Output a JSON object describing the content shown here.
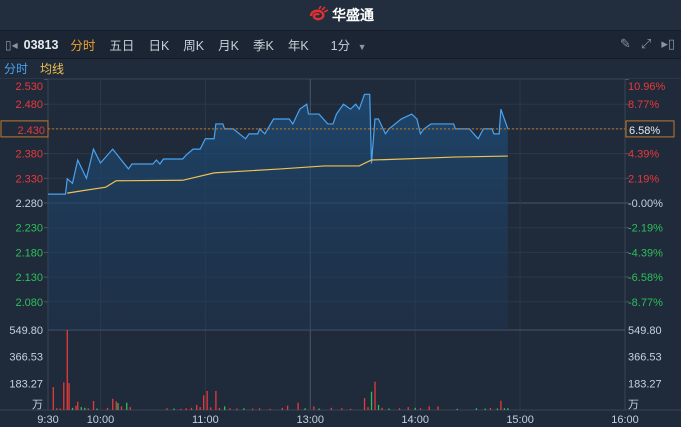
{
  "header": {
    "brand": "华盛通"
  },
  "toolbar": {
    "code": "03813",
    "tabs": [
      {
        "label": "分时",
        "active": true
      },
      {
        "label": "五日"
      },
      {
        "label": "日K"
      },
      {
        "label": "周K"
      },
      {
        "label": "月K"
      },
      {
        "label": "季K"
      },
      {
        "label": "年K"
      }
    ],
    "interval": "1分",
    "icons": [
      "pencil-icon",
      "fullscreen-icon",
      "collapse-panel-icon"
    ]
  },
  "legend": {
    "price_label": "分时",
    "avg_label": "均线",
    "price_color": "#4aa3f0",
    "avg_color": "#f0c050"
  },
  "colors": {
    "up": "#e83a3a",
    "down": "#2fbf5a",
    "neutral": "#c8d0da",
    "current_box": "#c07a2a"
  },
  "chart_data": {
    "type": "line",
    "prev_close": 2.28,
    "current_price": "2.430",
    "current_pct": "6.58%",
    "price_ticks": [
      "2.530",
      "2.480",
      "2.430",
      "2.380",
      "2.330",
      "2.280",
      "2.230",
      "2.180",
      "2.130",
      "2.080"
    ],
    "pct_ticks": [
      "10.96%",
      "8.77%",
      "6.58%",
      "4.39%",
      "2.19%",
      "-0.00%",
      "-2.19%",
      "-4.39%",
      "-6.58%",
      "-8.77%"
    ],
    "volume_ticks": [
      "549.80",
      "366.53",
      "183.27"
    ],
    "volume_unit": "万",
    "time_ticks": [
      "9:30",
      "10:00",
      "11:00",
      "13:00",
      "14:00",
      "15:00",
      "16:00"
    ],
    "price_series": [
      [
        "9:30",
        2.298
      ],
      [
        "9:40",
        2.298
      ],
      [
        "9:41",
        2.329
      ],
      [
        "9:44",
        2.32
      ],
      [
        "9:47",
        2.367
      ],
      [
        "9:52",
        2.33
      ],
      [
        "9:56",
        2.389
      ],
      [
        "10:00",
        2.361
      ],
      [
        "10:07",
        2.389
      ],
      [
        "10:16",
        2.349
      ],
      [
        "10:18",
        2.359
      ],
      [
        "10:30",
        2.359
      ],
      [
        "10:32",
        2.367
      ],
      [
        "10:34",
        2.359
      ],
      [
        "10:36",
        2.369
      ],
      [
        "10:47",
        2.369
      ],
      [
        "10:49",
        2.377
      ],
      [
        "10:53",
        2.389
      ],
      [
        "10:57",
        2.389
      ],
      [
        "11:00",
        2.41
      ],
      [
        "11:05",
        2.41
      ],
      [
        "11:06",
        2.44
      ],
      [
        "11:10",
        2.44
      ],
      [
        "11:11",
        2.43
      ],
      [
        "11:16",
        2.43
      ],
      [
        "11:23",
        2.41
      ],
      [
        "11:25",
        2.42
      ],
      [
        "11:30",
        2.42
      ],
      [
        "11:31",
        2.43
      ],
      [
        "11:34",
        2.42
      ],
      [
        "11:39",
        2.45
      ],
      [
        "11:48",
        2.45
      ],
      [
        "11:50",
        2.44
      ],
      [
        "11:54",
        2.47
      ],
      [
        "11:58",
        2.48
      ],
      [
        "11:59",
        2.46
      ],
      [
        "13:05",
        2.46
      ],
      [
        "13:10",
        2.44
      ],
      [
        "13:13",
        2.44
      ],
      [
        "13:15",
        2.46
      ],
      [
        "13:19",
        2.48
      ],
      [
        "13:23",
        2.47
      ],
      [
        "13:26",
        2.48
      ],
      [
        "13:28",
        2.47
      ],
      [
        "13:31",
        2.5
      ],
      [
        "13:34",
        2.5
      ],
      [
        "13:35",
        2.36
      ],
      [
        "13:37",
        2.45
      ],
      [
        "13:39",
        2.45
      ],
      [
        "13:43",
        2.42
      ],
      [
        "13:45",
        2.43
      ],
      [
        "13:52",
        2.45
      ],
      [
        "13:58",
        2.46
      ],
      [
        "14:01",
        2.45
      ],
      [
        "14:03",
        2.42
      ],
      [
        "14:05",
        2.43
      ],
      [
        "14:09",
        2.44
      ],
      [
        "14:22",
        2.44
      ],
      [
        "14:23",
        2.43
      ],
      [
        "14:31",
        2.43
      ],
      [
        "14:36",
        2.41
      ],
      [
        "14:39",
        2.43
      ],
      [
        "14:44",
        2.43
      ],
      [
        "14:45",
        2.42
      ],
      [
        "14:48",
        2.42
      ],
      [
        "14:49",
        2.47
      ],
      [
        "14:53",
        2.43
      ]
    ],
    "avg_series": [
      [
        "9:41",
        2.3
      ],
      [
        "9:50",
        2.305
      ],
      [
        "10:03",
        2.312
      ],
      [
        "10:09",
        2.325
      ],
      [
        "10:47",
        2.326
      ],
      [
        "11:05",
        2.341
      ],
      [
        "11:43",
        2.349
      ],
      [
        "13:08",
        2.355
      ],
      [
        "13:28",
        2.355
      ],
      [
        "13:35",
        2.367
      ],
      [
        "13:53",
        2.369
      ],
      [
        "14:22",
        2.373
      ],
      [
        "14:53",
        2.375
      ]
    ],
    "volume_series": [
      [
        "9:33",
        158,
        "up"
      ],
      [
        "9:35",
        12,
        "up"
      ],
      [
        "9:37",
        10,
        "up"
      ],
      [
        "9:39",
        190,
        "up"
      ],
      [
        "9:41",
        549.8,
        "up"
      ],
      [
        "9:42",
        185,
        "up"
      ],
      [
        "9:44",
        15,
        "down"
      ],
      [
        "9:46",
        30,
        "up"
      ],
      [
        "9:47",
        57,
        "up"
      ],
      [
        "9:49",
        20,
        "down"
      ],
      [
        "9:51",
        15,
        "down"
      ],
      [
        "9:53",
        12,
        "up"
      ],
      [
        "9:56",
        62,
        "up"
      ],
      [
        "9:58",
        10,
        "down"
      ],
      [
        "10:04",
        15,
        "up"
      ],
      [
        "10:07",
        77,
        "up"
      ],
      [
        "10:09",
        60,
        "up"
      ],
      [
        "10:10",
        48,
        "down"
      ],
      [
        "10:12",
        25,
        "up"
      ],
      [
        "10:15",
        50,
        "down"
      ],
      [
        "10:17",
        20,
        "up"
      ],
      [
        "10:38",
        12,
        "up"
      ],
      [
        "10:42",
        10,
        "down"
      ],
      [
        "10:46",
        8,
        "up"
      ],
      [
        "10:49",
        12,
        "up"
      ],
      [
        "10:52",
        15,
        "up"
      ],
      [
        "10:55",
        35,
        "up"
      ],
      [
        "10:57",
        20,
        "up"
      ],
      [
        "10:59",
        101,
        "up"
      ],
      [
        "11:01",
        131,
        "up"
      ],
      [
        "11:03",
        18,
        "up"
      ],
      [
        "11:06",
        131,
        "up"
      ],
      [
        "11:08",
        15,
        "up"
      ],
      [
        "11:11",
        25,
        "down"
      ],
      [
        "11:14",
        12,
        "up"
      ],
      [
        "11:18",
        10,
        "up"
      ],
      [
        "11:22",
        12,
        "down"
      ],
      [
        "11:27",
        10,
        "up"
      ],
      [
        "11:31",
        12,
        "up"
      ],
      [
        "11:37",
        8,
        "up"
      ],
      [
        "11:44",
        15,
        "up"
      ],
      [
        "11:47",
        30,
        "up"
      ],
      [
        "11:53",
        50,
        "up"
      ],
      [
        "11:57",
        12,
        "down"
      ],
      [
        "13:02",
        25,
        "up"
      ],
      [
        "13:05",
        10,
        "down"
      ],
      [
        "13:12",
        15,
        "up"
      ],
      [
        "13:18",
        12,
        "up"
      ],
      [
        "13:23",
        8,
        "up"
      ],
      [
        "13:31",
        82,
        "up"
      ],
      [
        "13:33",
        20,
        "up"
      ],
      [
        "13:35",
        126,
        "down"
      ],
      [
        "13:37",
        195,
        "up"
      ],
      [
        "13:39",
        35,
        "down"
      ],
      [
        "13:41",
        15,
        "up"
      ],
      [
        "13:45",
        10,
        "down"
      ],
      [
        "13:51",
        12,
        "up"
      ],
      [
        "13:56",
        20,
        "up"
      ],
      [
        "14:00",
        15,
        "down"
      ],
      [
        "14:03",
        12,
        "up"
      ],
      [
        "14:08",
        25,
        "up"
      ],
      [
        "14:13",
        25,
        "up"
      ],
      [
        "14:24",
        8,
        "down"
      ],
      [
        "14:35",
        12,
        "down"
      ],
      [
        "14:40",
        10,
        "down"
      ],
      [
        "14:43",
        15,
        "up"
      ],
      [
        "14:47",
        10,
        "down"
      ],
      [
        "14:49",
        64,
        "up"
      ],
      [
        "14:51",
        12,
        "down"
      ],
      [
        "14:53",
        12,
        "down"
      ]
    ]
  }
}
